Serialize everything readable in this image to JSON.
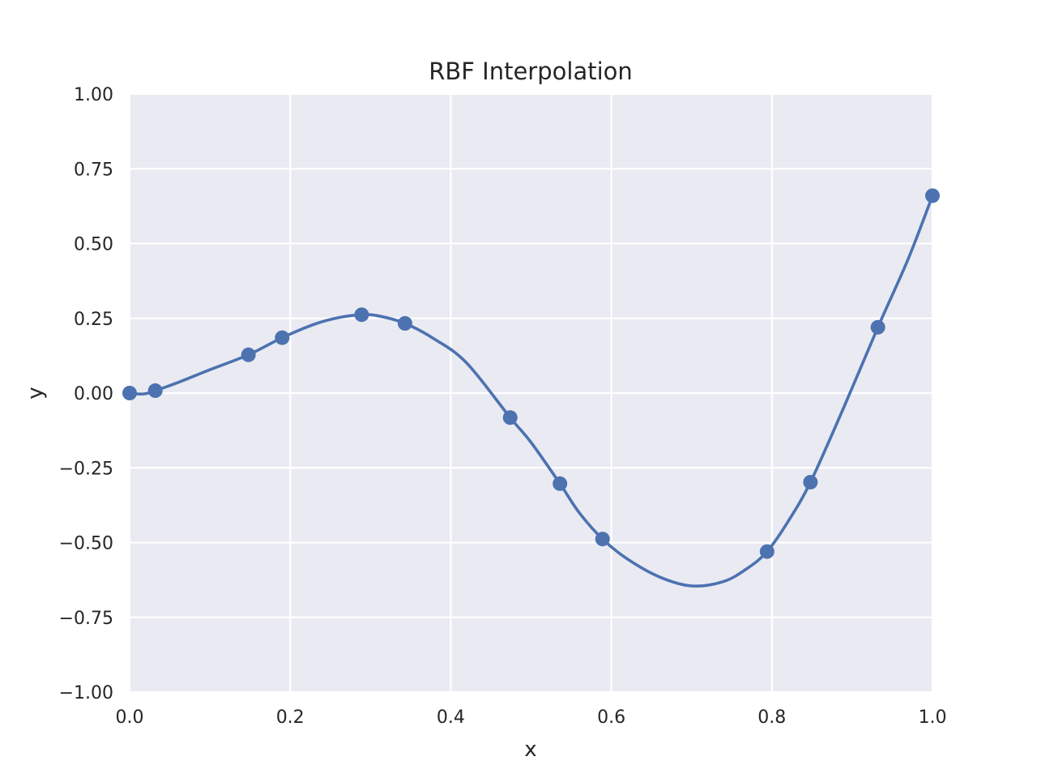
{
  "chart_data": {
    "type": "line",
    "title": "RBF Interpolation",
    "xlabel": "x",
    "ylabel": "y",
    "xlim": [
      0.0,
      1.0
    ],
    "ylim": [
      -1.0,
      1.0
    ],
    "grid": true,
    "x_ticks": [
      "0.0",
      "0.2",
      "0.4",
      "0.6",
      "0.8",
      "1.0"
    ],
    "y_ticks": [
      "1.00",
      "0.75",
      "0.50",
      "0.25",
      "0.00",
      "−0.25",
      "−0.50",
      "−0.75",
      "−1.00"
    ],
    "series": [
      {
        "kind": "curve",
        "color": "#4c72b0",
        "x": [
          0.0,
          0.01,
          0.02,
          0.032,
          0.06,
          0.1,
          0.148,
          0.19,
          0.23,
          0.26,
          0.289,
          0.31,
          0.343,
          0.38,
          0.42,
          0.474,
          0.5,
          0.536,
          0.56,
          0.589,
          0.62,
          0.66,
          0.7,
          0.74,
          0.77,
          0.794,
          0.82,
          0.848,
          0.89,
          0.932,
          0.97,
          1.0
        ],
        "y": [
          0.0,
          -0.003,
          -0.002,
          0.008,
          0.035,
          0.078,
          0.128,
          0.185,
          0.23,
          0.252,
          0.262,
          0.258,
          0.233,
          0.18,
          0.1,
          -0.082,
          -0.165,
          -0.303,
          -0.4,
          -0.488,
          -0.555,
          -0.615,
          -0.645,
          -0.63,
          -0.585,
          -0.53,
          -0.43,
          -0.298,
          -0.045,
          0.22,
          0.45,
          0.66
        ]
      },
      {
        "kind": "points",
        "color": "#4c72b0",
        "x": [
          0.0,
          0.032,
          0.148,
          0.19,
          0.289,
          0.343,
          0.474,
          0.536,
          0.589,
          0.794,
          0.848,
          0.932,
          1.0
        ],
        "y": [
          0.0,
          0.008,
          0.128,
          0.185,
          0.262,
          0.233,
          -0.082,
          -0.303,
          -0.488,
          -0.53,
          -0.298,
          0.22,
          0.66
        ]
      }
    ],
    "style": {
      "plot_background": "#eaeaf2",
      "grid_color": "#ffffff",
      "text_color": "#262626"
    }
  }
}
